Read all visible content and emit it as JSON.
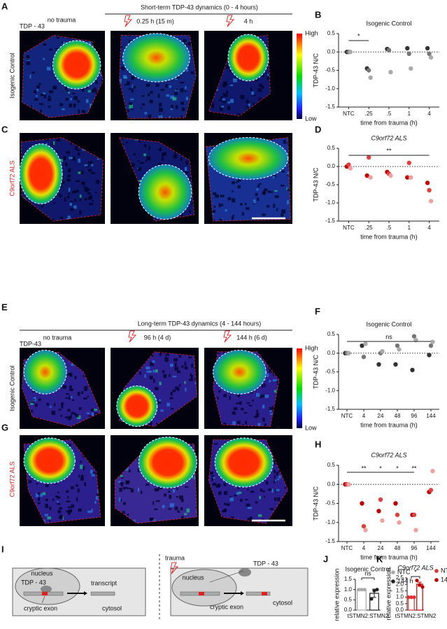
{
  "figure": {
    "A": {
      "letter": "A",
      "header": "Short-term TDP-43 dynamics (0 - 4 hours)",
      "protein": "TDP - 43",
      "columns": [
        "no trauma",
        "0.25 h (15 m)",
        "4 h"
      ],
      "row_label": "Isogenic Control",
      "colorbar_high": "High",
      "colorbar_low": "Low"
    },
    "C": {
      "letter": "C",
      "row_label": "C9orf72 ALS"
    },
    "E": {
      "letter": "E",
      "header": "Long-term TDP-43 dynamics (4 - 144 hours)",
      "protein": "TDP-43",
      "columns": [
        "no trauma",
        "96 h (4 d)",
        "144 h (6 d)"
      ],
      "row_label": "Isogenic Control",
      "colorbar_high": "High",
      "colorbar_low": "Low"
    },
    "G": {
      "letter": "G",
      "row_label": "C9orf72 ALS"
    },
    "I": {
      "letter": "I",
      "left": {
        "nucleus": "nucleus",
        "protein": "TDP - 43",
        "transcript": "transcript",
        "exon": "cryptic exon",
        "cytosol": "cytosol"
      },
      "right": {
        "trauma": "trauma",
        "nucleus": "nucleus",
        "protein": "TDP - 43",
        "exon": "cryptic exon",
        "cytosol": "cytosol"
      }
    }
  },
  "chart_data": [
    {
      "type": "scatter",
      "panel": "B",
      "title": "Isogenic Control",
      "ylabel": "TDP-43 N/C",
      "xlabel": "time from trauma (h)",
      "categories": [
        "NTC",
        ".25",
        ".5",
        "1",
        "4"
      ],
      "series": [
        {
          "color": "#333333",
          "values": [
            0,
            -0.45,
            0.08,
            0.1,
            0.1
          ]
        },
        {
          "color": "#777777",
          "values": [
            0,
            -0.5,
            0.05,
            -0.05,
            -0.05
          ]
        },
        {
          "color": "#aaaaaa",
          "values": [
            0,
            -0.7,
            -0.55,
            -0.45,
            -0.15
          ]
        }
      ],
      "ylim": [
        -1.5,
        0.5
      ],
      "yticks": [
        -1.5,
        {
          "value": -1,
          "label": "-1.0"
        },
        -0.5,
        {
          "value": 0,
          "label": "0.0"
        },
        0.5
      ],
      "hline": 0,
      "brackets": [
        {
          "from": "NTC",
          "to": ".25",
          "text": "*"
        }
      ]
    },
    {
      "type": "scatter",
      "panel": "D",
      "title": "C9orf72 ALS",
      "ylabel": "TDP-43 N/C",
      "xlabel": "time from trauma (h)",
      "categories": [
        "NTC",
        ".25",
        ".5",
        "1",
        "4"
      ],
      "series": [
        {
          "color": "#c00000",
          "values": [
            0,
            -0.25,
            -0.15,
            -0.3,
            -0.45
          ]
        },
        {
          "color": "#e04040",
          "values": [
            0.05,
            0.25,
            -0.2,
            0.1,
            -0.65
          ]
        },
        {
          "color": "#f0a0a0",
          "values": [
            -0.05,
            -0.3,
            -0.25,
            -0.3,
            -0.95
          ]
        }
      ],
      "ylim": [
        -1.5,
        0.5
      ],
      "yticks": [
        -1.5,
        {
          "value": -1,
          "label": "-1.0"
        },
        -0.5,
        {
          "value": 0,
          "label": "0.0"
        },
        0.5
      ],
      "hline": 0,
      "brackets": [
        {
          "from": "NTC",
          "to": "4",
          "text": "**"
        }
      ]
    },
    {
      "type": "scatter",
      "panel": "F",
      "title": "Isogenic Control",
      "ylabel": "TDP-43 N/C",
      "xlabel": "time from trauma (h)",
      "categories": [
        "NTC",
        "4",
        "24",
        "48",
        "96",
        "144"
      ],
      "series": [
        {
          "color": "#333333",
          "values": [
            0,
            0.2,
            -0.3,
            -0.3,
            -0.45,
            -0.05
          ]
        },
        {
          "color": "#777777",
          "values": [
            0,
            -0.1,
            0,
            0.2,
            0.45,
            0.2
          ]
        },
        {
          "color": "#aaaaaa",
          "values": [
            0,
            0.25,
            0.05,
            0.1,
            0.35,
            0.3
          ]
        }
      ],
      "ylim": [
        -1.5,
        0.5
      ],
      "yticks": [
        -1.5,
        {
          "value": -1,
          "label": "-1.0"
        },
        -0.5,
        {
          "value": 0,
          "label": "0.0"
        },
        0.5
      ],
      "hline": 0,
      "brackets": [
        {
          "from": "NTC",
          "to": "144",
          "text": "ns"
        }
      ]
    },
    {
      "type": "scatter",
      "panel": "H",
      "title": "C9orf72 ALS",
      "ylabel": "TDP-43 N/C",
      "xlabel": "time from trauma (h)",
      "categories": [
        "NTC",
        "4",
        "24",
        "48",
        "96",
        "144"
      ],
      "series": [
        {
          "color": "#c00000",
          "values": [
            0,
            -0.5,
            -0.7,
            -0.5,
            -0.8,
            -0.2
          ]
        },
        {
          "color": "#e04040",
          "values": [
            0,
            -1.1,
            -0.4,
            -0.8,
            -0.8,
            -0.15
          ]
        },
        {
          "color": "#f0a0a0",
          "values": [
            0,
            -1.2,
            -0.95,
            -1,
            -1.2,
            0.35
          ]
        }
      ],
      "ylim": [
        -1.5,
        0.5
      ],
      "yticks": [
        -1.5,
        {
          "value": -1,
          "label": "-1.0"
        },
        -0.5,
        {
          "value": 0,
          "label": "0.0"
        },
        0.5
      ],
      "hline": 0,
      "brackets": [
        {
          "from": "NTC",
          "to": "96"
        }
      ],
      "annotations": [
        {
          "at": "4",
          "text": "**"
        },
        {
          "at": "24",
          "text": "*"
        },
        {
          "at": "48",
          "text": "*"
        },
        {
          "at": "96",
          "text": "**"
        }
      ]
    },
    {
      "type": "bar",
      "panel": "J",
      "title": "Isogenic Control",
      "ylabel": "relative expression",
      "categories": [
        "tSTMN2:STMN2"
      ],
      "series": [
        {
          "name": "NTC",
          "color": "#aaaaaa",
          "values": [
            1
          ],
          "errors": [
            0
          ],
          "points": [
            1,
            1,
            1
          ]
        },
        {
          "name": "144 h",
          "color": "#222222",
          "values": [
            0.82
          ],
          "errors": [
            0.2
          ],
          "points": [
            0.55,
            0.95,
            1
          ]
        }
      ],
      "ylim": [
        0,
        1.5
      ],
      "yticks": [
        {
          "value": 0,
          "label": "0.0"
        },
        0.5,
        {
          "value": 1,
          "label": "1.0"
        },
        1.5
      ],
      "brackets": [
        {
          "from": "NTC",
          "to": "144 h",
          "text": "ns"
        }
      ]
    },
    {
      "type": "bar",
      "panel": "K",
      "title": "C9orf72 ALS",
      "ylabel": "relative expression",
      "categories": [
        "tSTMN2:STMN2"
      ],
      "series": [
        {
          "name": "NTC",
          "color": "#e03030",
          "values": [
            1
          ],
          "errors": [
            0
          ],
          "points": [
            1,
            1,
            1
          ]
        },
        {
          "name": "144 h",
          "color": "#c00000",
          "values": [
            2.02
          ],
          "errors": [
            0.15
          ],
          "points": [
            2.3,
            1.95,
            1.8
          ]
        }
      ],
      "ylim": [
        0,
        2.5
      ],
      "yticks": [
        {
          "value": 0,
          "label": "0.0"
        },
        0.5,
        {
          "value": 1,
          "label": "1.0"
        },
        1.5,
        {
          "value": 2,
          "label": "2.0"
        },
        2.5
      ],
      "brackets": [
        {
          "from": "NTC",
          "to": "144 h",
          "text": "*"
        }
      ]
    }
  ]
}
